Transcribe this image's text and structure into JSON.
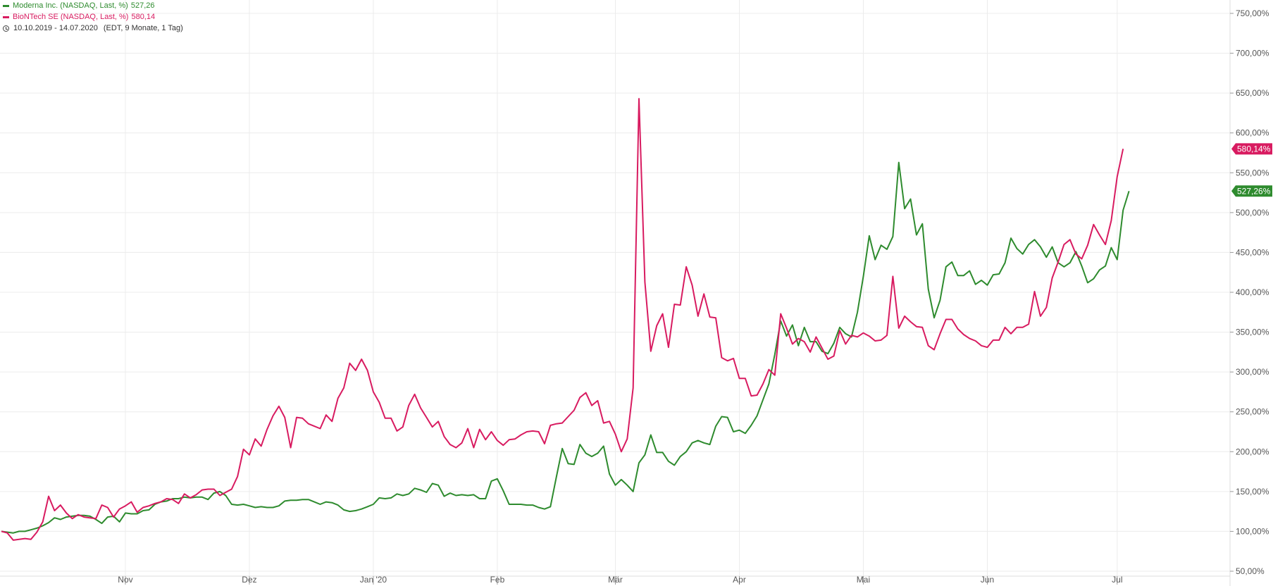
{
  "legend": {
    "moderna": {
      "name": "Moderna Inc. (NASDAQ, Last, %)",
      "value": "527,26",
      "color": "#2e8b2e"
    },
    "biontech": {
      "name": "BioNTech SE (NASDAQ, Last, %)",
      "value": "580,14",
      "color": "#d81b60"
    },
    "range": "10.10.2019 - 14.07.2020",
    "range_detail": "(EDT, 9 Monate, 1 Tag)"
  },
  "badges": {
    "biontech": "580,14%",
    "moderna": "527,26%"
  },
  "chart_data": {
    "type": "line",
    "x_tick_labels": [
      "Nov",
      "Dez",
      "Jan '20",
      "Feb",
      "Mär",
      "Apr",
      "Mai",
      "Jun",
      "Jul"
    ],
    "x_ticks_at_index": [
      21,
      42,
      63,
      84,
      104,
      125,
      146,
      167,
      189
    ],
    "y_tick_labels": [
      "50,00%",
      "100,00%",
      "150,00%",
      "200,00%",
      "250,00%",
      "300,00%",
      "350,00%",
      "400,00%",
      "450,00%",
      "500,00%",
      "550,00%",
      "600,00%",
      "650,00%",
      "700,00%",
      "750,00%"
    ],
    "y_ticks": [
      50,
      100,
      150,
      200,
      250,
      300,
      350,
      400,
      450,
      500,
      550,
      600,
      650,
      700,
      750
    ],
    "ylim": [
      50,
      750
    ],
    "grid": true,
    "legend_position": "top-left",
    "series": [
      {
        "name": "Moderna Inc. (NASDAQ, Last, %)",
        "color": "#2e8b2e",
        "values": [
          100,
          99,
          98,
          100,
          100,
          102,
          104,
          107,
          111,
          117,
          115,
          118,
          119,
          120,
          120,
          119,
          115,
          110,
          118,
          119,
          112,
          123,
          122,
          122,
          126,
          127,
          134,
          137,
          138,
          141,
          141,
          143,
          142,
          143,
          143,
          140,
          148,
          150,
          145,
          134,
          133,
          134,
          132,
          130,
          131,
          130,
          130,
          132,
          138,
          139,
          139,
          140,
          140,
          137,
          134,
          137,
          136,
          133,
          127,
          125,
          126,
          128,
          131,
          134,
          142,
          141,
          142,
          147,
          145,
          147,
          154,
          152,
          149,
          160,
          158,
          144,
          148,
          145,
          146,
          145,
          146,
          141,
          141,
          163,
          166,
          151,
          134,
          134,
          134,
          133,
          133,
          130,
          128,
          131,
          168,
          204,
          185,
          184,
          209,
          198,
          194,
          198,
          207,
          172,
          158,
          165,
          158,
          150,
          186,
          196,
          221,
          199,
          199,
          188,
          183,
          194,
          200,
          211,
          214,
          211,
          209,
          232,
          244,
          243,
          225,
          227,
          223,
          233,
          245,
          265,
          285,
          322,
          364,
          345,
          359,
          333,
          356,
          338,
          338,
          326,
          323,
          336,
          356,
          348,
          344,
          375,
          420,
          471,
          441,
          459,
          454,
          470,
          563,
          505,
          517,
          472,
          486,
          404,
          368,
          390,
          432,
          438,
          421,
          421,
          427,
          410,
          415,
          409,
          422,
          423,
          437,
          468,
          455,
          448,
          460,
          466,
          457,
          444,
          457,
          437,
          432,
          437,
          451,
          433,
          412,
          417,
          428,
          433,
          456,
          441,
          503,
          527
        ]
      },
      {
        "name": "BioNTech SE (NASDAQ, Last, %)",
        "color": "#d81b60",
        "values": [
          100,
          98,
          89,
          90,
          91,
          90,
          99,
          112,
          144,
          126,
          133,
          123,
          116,
          121,
          118,
          117,
          116,
          133,
          130,
          118,
          128,
          132,
          137,
          124,
          130,
          132,
          135,
          137,
          141,
          140,
          135,
          147,
          142,
          146,
          152,
          153,
          153,
          145,
          149,
          153,
          169,
          203,
          196,
          216,
          207,
          228,
          245,
          257,
          243,
          205,
          243,
          242,
          235,
          232,
          229,
          246,
          238,
          267,
          280,
          311,
          302,
          316,
          302,
          275,
          262,
          242,
          242,
          226,
          231,
          258,
          272,
          255,
          243,
          231,
          238,
          219,
          209,
          205,
          211,
          229,
          205,
          228,
          215,
          225,
          214,
          208,
          215,
          216,
          221,
          225,
          226,
          225,
          210,
          233,
          235,
          236,
          244,
          252,
          268,
          274,
          258,
          264,
          236,
          238,
          222,
          200,
          216,
          280,
          643,
          413,
          326,
          358,
          373,
          331,
          385,
          384,
          432,
          409,
          370,
          398,
          369,
          368,
          318,
          314,
          317,
          292,
          292,
          270,
          271,
          285,
          303,
          296,
          373,
          355,
          335,
          342,
          338,
          325,
          344,
          330,
          316,
          320,
          352,
          335,
          346,
          344,
          349,
          345,
          339,
          340,
          346,
          420,
          355,
          370,
          363,
          357,
          356,
          333,
          328,
          348,
          366,
          366,
          354,
          347,
          342,
          339,
          333,
          331,
          340,
          340,
          356,
          348,
          356,
          356,
          360,
          401,
          370,
          381,
          418,
          438,
          460,
          466,
          448,
          442,
          459,
          485,
          472,
          460,
          490,
          545,
          580
        ]
      }
    ]
  }
}
